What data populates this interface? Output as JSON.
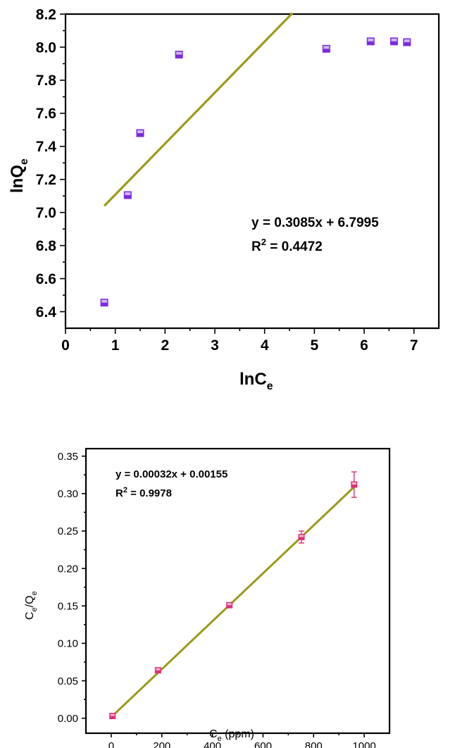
{
  "chart_data": [
    {
      "type": "scatter",
      "title": "",
      "xlabel": "lnC",
      "xlabel_sub": "e",
      "ylabel": "lnQ",
      "ylabel_sub": "e",
      "xlim": [
        0,
        7.5
      ],
      "ylim": [
        6.3,
        8.2
      ],
      "x_ticks": [
        0,
        1,
        2,
        3,
        4,
        5,
        6,
        7
      ],
      "x_tick_labels": [
        "0",
        "1",
        "2",
        "3",
        "4",
        "5",
        "6",
        "7"
      ],
      "y_ticks": [
        6.4,
        6.6,
        6.8,
        7.0,
        7.2,
        7.4,
        7.6,
        7.8,
        8.0,
        8.2
      ],
      "y_tick_labels": [
        "6.4",
        "6.6",
        "6.8",
        "7.0",
        "7.2",
        "7.4",
        "7.6",
        "7.8",
        "8.0",
        "8.2"
      ],
      "grid": false,
      "marker_color": "#7b2be0",
      "line_color": "#9a9a1a",
      "points": [
        {
          "x": 0.78,
          "y": 6.455
        },
        {
          "x": 1.25,
          "y": 7.105
        },
        {
          "x": 1.5,
          "y": 7.48
        },
        {
          "x": 2.28,
          "y": 7.955
        },
        {
          "x": 5.24,
          "y": 7.99
        },
        {
          "x": 6.13,
          "y": 8.035
        },
        {
          "x": 6.6,
          "y": 8.035
        },
        {
          "x": 6.86,
          "y": 8.03
        }
      ],
      "fit": {
        "slope": 0.3085,
        "intercept": 6.7995,
        "x_range": [
          0.78,
          4.56
        ]
      },
      "annotation": {
        "equation": "y = 0.3085x + 6.7995",
        "r2_prefix": "R",
        "r2_sup": "2",
        "r2_value": " = 0.4472"
      }
    },
    {
      "type": "scatter",
      "title": "",
      "xlabel": "C",
      "xlabel_sub": "e",
      "xlabel_suffix": " (ppm)",
      "ylabel": "C",
      "ylabel_sub": "e",
      "ylabel_mid": "/Q",
      "ylabel_sub2": "e",
      "xlim": [
        -100,
        1100
      ],
      "ylim": [
        -0.02,
        0.36
      ],
      "x_ticks": [
        0,
        200,
        400,
        600,
        800,
        1000
      ],
      "x_tick_labels": [
        "0",
        "200",
        "400",
        "600",
        "800",
        "1000"
      ],
      "y_ticks": [
        0.0,
        0.05,
        0.1,
        0.15,
        0.2,
        0.25,
        0.3,
        0.35
      ],
      "y_tick_labels": [
        "0.00",
        "0.05",
        "0.10",
        "0.15",
        "0.20",
        "0.25",
        "0.30",
        "0.35"
      ],
      "grid": false,
      "marker_color": "#e0307a",
      "line_color": "#9a9a1a",
      "points": [
        {
          "x": 5,
          "y": 0.003,
          "err": 0.003
        },
        {
          "x": 185,
          "y": 0.064,
          "err": 0.003
        },
        {
          "x": 467,
          "y": 0.151,
          "err": 0.003
        },
        {
          "x": 752,
          "y": 0.242,
          "err": 0.008
        },
        {
          "x": 960,
          "y": 0.312,
          "err": 0.017
        }
      ],
      "fit": {
        "slope": 0.00032,
        "intercept": 0.00155,
        "x_range": [
          0,
          960
        ]
      },
      "annotation": {
        "equation": "y = 0.00032x + 0.00155",
        "r2_prefix": "R",
        "r2_sup": "2",
        "r2_value": " = 0.9978"
      }
    }
  ]
}
